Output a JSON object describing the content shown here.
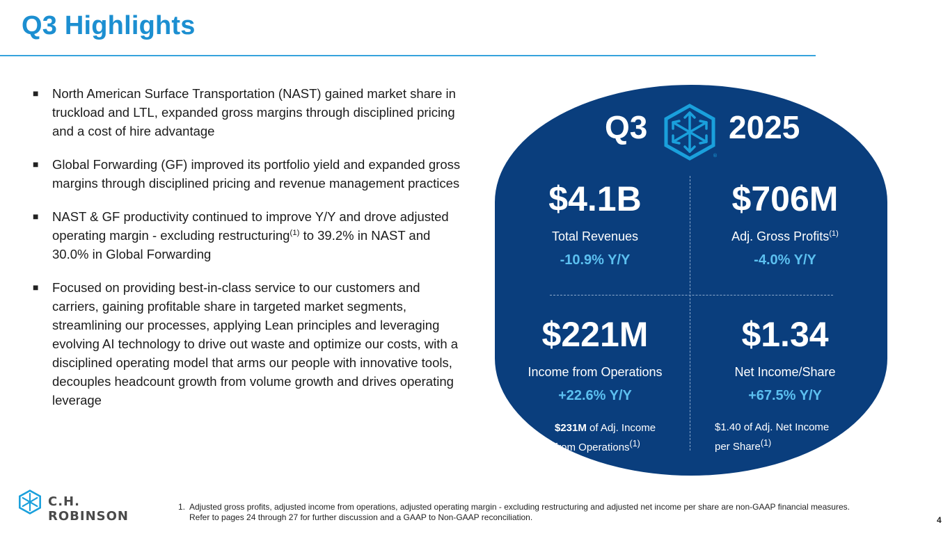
{
  "slide": {
    "title": "Q3 Highlights",
    "page_number": "4"
  },
  "bullets": [
    {
      "text": "North American Surface Transportation (NAST) gained market share in truckload and LTL, expanded gross margins through disciplined pricing and a cost of hire advantage"
    },
    {
      "text": "Global Forwarding (GF) improved its portfolio yield and expanded gross margins through disciplined pricing and revenue management practices"
    },
    {
      "text_before": "NAST & GF productivity continued to improve Y/Y and drove adjusted operating margin - excluding restructuring",
      "sup": "(1)",
      "text_after": " to 39.2% in NAST and 30.0% in Global Forwarding"
    },
    {
      "text": "Focused on providing best-in-class service to our customers and carriers, gaining profitable share in targeted market segments, streamlining our processes, applying Lean principles and leveraging evolving AI technology to drive out waste and optimize our costs, with a disciplined operating model that arms our people with innovative tools, decouples headcount growth from volume growth and drives operating leverage"
    }
  ],
  "panel": {
    "quarter": "Q3",
    "year": "2025",
    "logo_icon": "ch-robinson-cube-icon",
    "registered": "®",
    "kpis": [
      {
        "value": "$4.1B",
        "label": "Total Revenues",
        "label_sup": "",
        "change": "-10.9% Y/Y"
      },
      {
        "value": "$706M",
        "label": "Adj. Gross Profits",
        "label_sup": "(1)",
        "change": "-4.0% Y/Y"
      },
      {
        "value": "$221M",
        "label": "Income from Operations",
        "label_sup": "",
        "change": "+22.6% Y/Y"
      },
      {
        "value": "$1.34",
        "label": "Net Income/Share",
        "label_sup": "",
        "change": "+67.5% Y/Y"
      }
    ],
    "notes": [
      {
        "bold": "$231M",
        "line1": " of Adj. Income",
        "line2": "from Operations",
        "sup": "(1)"
      },
      {
        "line1": "$1.40 of Adj. Net Income",
        "line2": "per Share",
        "sup": "(1)"
      }
    ]
  },
  "footer": {
    "brand": "C.H. ROBINSON",
    "footnote_number": "1.",
    "footnote_line1": "Adjusted gross profits, adjusted income from operations, adjusted operating margin - excluding restructuring and adjusted net income per share are non-GAAP financial measures.",
    "footnote_line2": "Refer to pages 24 through 27 for further discussion and a GAAP to Non-GAAP reconciliation."
  },
  "colors": {
    "accent_blue": "#1c8fd1",
    "panel_navy": "#0a3e7d",
    "change_blue": "#5cc0f0",
    "logo_blue": "#1aa0dc"
  }
}
